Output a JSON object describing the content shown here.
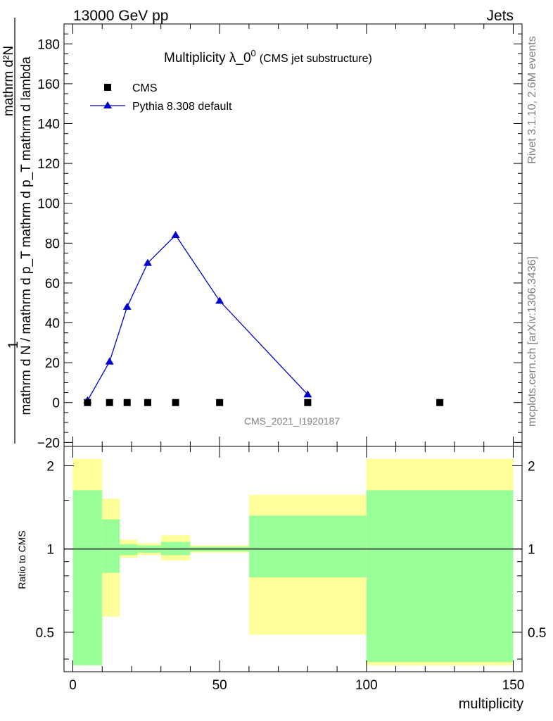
{
  "header": {
    "left": "13000 GeV pp",
    "right": "Jets"
  },
  "side_labels": {
    "rivet": "Rivet 3.1.10,  2.6M events",
    "mcplots": "mcplots.cern.ch [arXiv:1306.3436]"
  },
  "watermark": "CMS_2021_I1920187",
  "chart_data": [
    {
      "type": "line",
      "title_main": "Multiplicity λ_0",
      "title_sup": "0",
      "title_sub": "(CMS jet substructure)",
      "ylabel_numerator": "1",
      "ylabel_denominator": "mathrm d N / mathrm d p_T mathrm d p_T mathrm d lambda",
      "ylabel_right": "mathrm d²N",
      "xlim": [
        -3,
        153
      ],
      "ylim": [
        -22,
        190
      ],
      "yticks": [
        -20,
        0,
        20,
        40,
        60,
        80,
        100,
        120,
        140,
        160,
        180
      ],
      "ytick_labels": [
        "−20",
        "0",
        "20",
        "40",
        "60",
        "80",
        "100",
        "120",
        "140",
        "160",
        "180"
      ],
      "legend_position": "top-left",
      "series": [
        {
          "name": "CMS",
          "marker": "square",
          "color": "#000000",
          "x": [
            5,
            12.5,
            18.5,
            25.5,
            35,
            50,
            80,
            125
          ],
          "y": [
            0,
            0,
            0,
            0,
            0,
            0,
            0,
            0
          ]
        },
        {
          "name": "Pythia 8.308 default",
          "marker": "triangle",
          "color": "#0000cc",
          "x": [
            5,
            12.5,
            18.5,
            25.5,
            35,
            50,
            80
          ],
          "y": [
            1,
            20.5,
            48,
            70,
            84,
            51,
            4
          ]
        }
      ]
    },
    {
      "type": "area",
      "ylabel": "Ratio to CMS",
      "xlabel": "multiplicity",
      "log_scale_y": true,
      "xlim": [
        -3,
        153
      ],
      "ylim": [
        0.36,
        2.35
      ],
      "xticks": [
        0,
        50,
        100,
        150
      ],
      "xtick_labels": [
        "0",
        "50",
        "100",
        "150"
      ],
      "yticks": [
        0.5,
        1,
        2
      ],
      "ytick_labels": [
        "0.5",
        "1",
        "2"
      ],
      "reference_line": 1,
      "band_colors": {
        "outer": "#ffff99",
        "inner": "#99ff99"
      },
      "bins": [
        {
          "x0": 0,
          "x1": 10,
          "outer": [
            0.38,
            2.12
          ],
          "inner": [
            0.38,
            1.63
          ]
        },
        {
          "x0": 10,
          "x1": 16,
          "outer": [
            0.57,
            1.52
          ],
          "inner": [
            0.82,
            1.28
          ]
        },
        {
          "x0": 16,
          "x1": 22,
          "outer": [
            0.93,
            1.08
          ],
          "inner": [
            0.95,
            1.04
          ]
        },
        {
          "x0": 22,
          "x1": 30,
          "outer": [
            0.95,
            1.05
          ],
          "inner": [
            0.97,
            1.03
          ]
        },
        {
          "x0": 30,
          "x1": 40,
          "outer": [
            0.91,
            1.12
          ],
          "inner": [
            0.95,
            1.06
          ]
        },
        {
          "x0": 40,
          "x1": 60,
          "outer": [
            0.97,
            1.03
          ],
          "inner": [
            0.98,
            1.02
          ]
        },
        {
          "x0": 60,
          "x1": 100,
          "outer": [
            0.49,
            1.57
          ],
          "inner": [
            0.79,
            1.32
          ]
        },
        {
          "x0": 100,
          "x1": 150,
          "outer": [
            0.38,
            2.12
          ],
          "inner": [
            0.39,
            1.63
          ]
        }
      ]
    }
  ]
}
